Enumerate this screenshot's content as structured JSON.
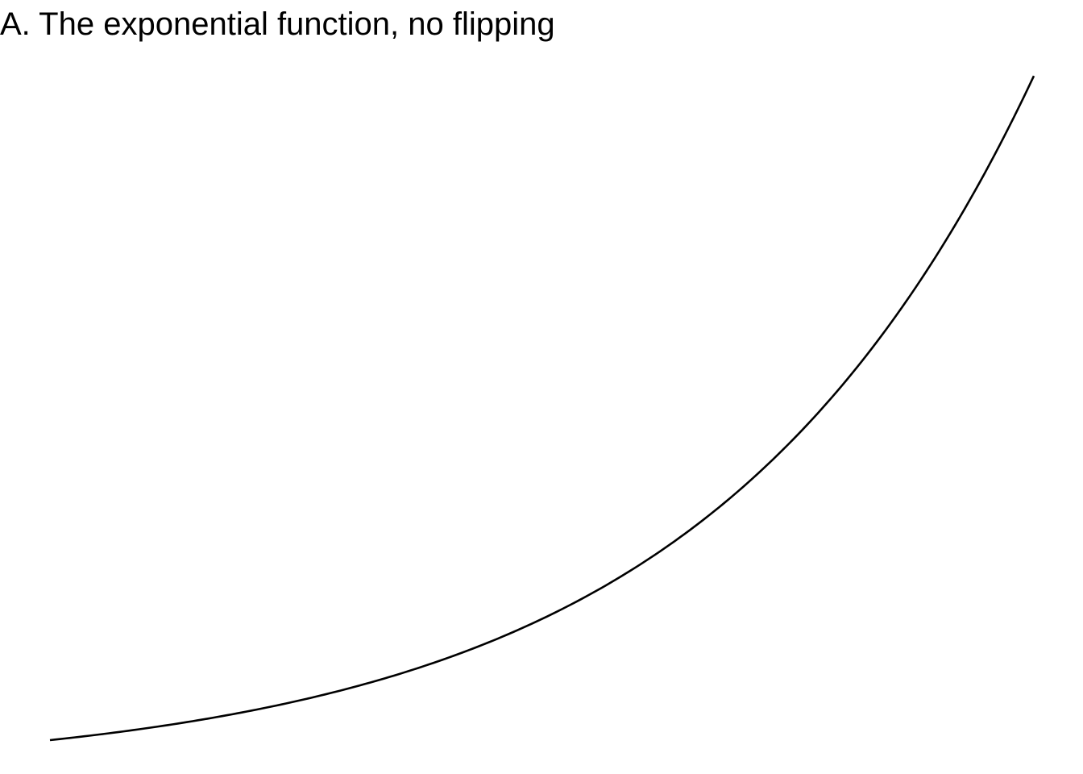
{
  "chart_data": {
    "type": "line",
    "title": "A. The exponential function, no flipping",
    "xlabel": "",
    "ylabel": "",
    "grid": false,
    "axes_visible": false,
    "function": "exp(x)",
    "xlim": [
      0,
      3
    ],
    "ylim": [
      1,
      20.09
    ],
    "series": [
      {
        "name": "exp(x)",
        "color": "#000000",
        "x": [
          0,
          0.25,
          0.5,
          0.75,
          1.0,
          1.25,
          1.5,
          1.75,
          2.0,
          2.25,
          2.5,
          2.75,
          3.0
        ],
        "y": [
          1.0,
          1.284,
          1.649,
          2.117,
          2.718,
          3.49,
          4.482,
          5.755,
          7.389,
          9.488,
          12.182,
          15.643,
          20.086
        ]
      }
    ]
  }
}
